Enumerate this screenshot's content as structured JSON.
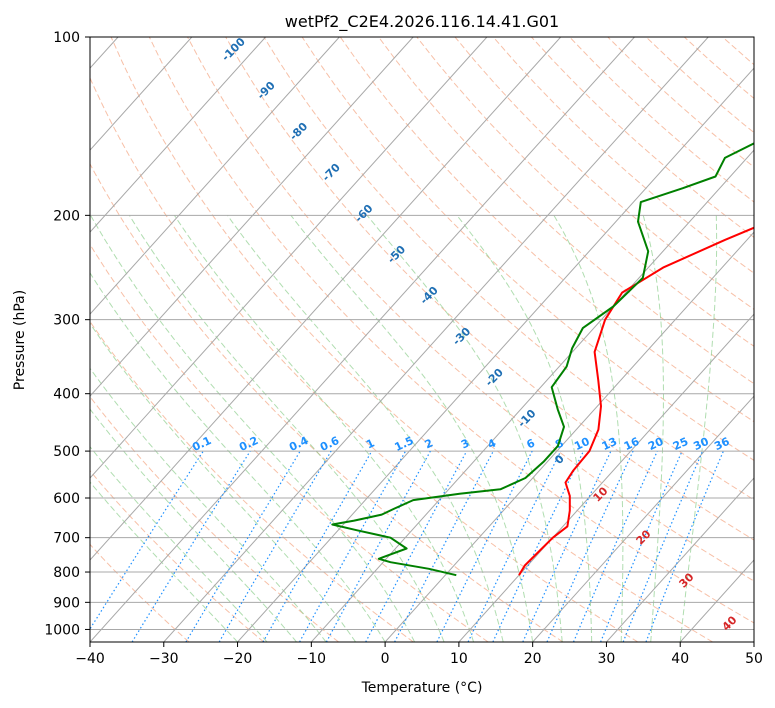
{
  "chart_data": {
    "type": "line",
    "title": "wetPf2_C2E4.2026.116.14.41.G01",
    "xlabel": "Temperature (°C)",
    "ylabel": "Pressure (hPa)",
    "xlim": [
      -40,
      50
    ],
    "ylim": [
      1050,
      100
    ],
    "y_scale": "log",
    "grid": true,
    "x_ticks": [
      -40,
      -30,
      -20,
      -10,
      0,
      10,
      20,
      30,
      40,
      50
    ],
    "y_ticks": [
      100,
      200,
      300,
      400,
      500,
      600,
      700,
      800,
      900,
      1000
    ],
    "series": [
      {
        "color": "#ff0000",
        "points": [
          [
            10,
            810
          ],
          [
            9.6,
            780
          ],
          [
            9.8,
            740
          ],
          [
            10.0,
            700
          ],
          [
            10.6,
            670
          ],
          [
            9.0,
            630
          ],
          [
            7.2,
            595
          ],
          [
            5.0,
            565
          ],
          [
            4.6,
            540
          ],
          [
            4.4,
            500
          ],
          [
            3.0,
            460
          ],
          [
            0.5,
            420
          ],
          [
            -3.0,
            380
          ],
          [
            -7.0,
            340
          ],
          [
            -9.5,
            300
          ],
          [
            -10.5,
            270
          ],
          [
            -8.0,
            245
          ],
          [
            -3.0,
            220
          ],
          [
            2.0,
            200
          ],
          [
            6.0,
            185
          ],
          [
            9.0,
            170
          ],
          [
            13.0,
            155
          ],
          [
            17.0,
            140
          ],
          [
            21.0,
            128
          ],
          [
            24.0,
            118
          ],
          [
            25.5,
            112
          ],
          [
            27.0,
            105
          ],
          [
            28.0,
            100
          ]
        ]
      },
      {
        "color": "#008000",
        "points": [
          [
            1.5,
            810
          ],
          [
            -3.0,
            790
          ],
          [
            -9.0,
            770
          ],
          [
            -11.0,
            760
          ],
          [
            -8.5,
            730
          ],
          [
            -12.0,
            700
          ],
          [
            -17.5,
            680
          ],
          [
            -21.5,
            665
          ],
          [
            -19.0,
            655
          ],
          [
            -16.0,
            640
          ],
          [
            -15.0,
            625
          ],
          [
            -13.5,
            605
          ],
          [
            -8.0,
            590
          ],
          [
            -3.0,
            580
          ],
          [
            -1.0,
            555
          ],
          [
            -0.5,
            520
          ],
          [
            -0.5,
            490
          ],
          [
            -2.0,
            455
          ],
          [
            -5.0,
            425
          ],
          [
            -8.5,
            390
          ],
          [
            -9.0,
            360
          ],
          [
            -10.5,
            335
          ],
          [
            -11.5,
            310
          ],
          [
            -10.0,
            285
          ],
          [
            -9.5,
            255
          ],
          [
            -12.0,
            230
          ],
          [
            -17.0,
            205
          ],
          [
            -19.0,
            190
          ],
          [
            -15.0,
            180
          ],
          [
            -12.0,
            172
          ],
          [
            -13.0,
            160
          ],
          [
            -10.0,
            148
          ],
          [
            -7.0,
            132
          ],
          [
            -3.5,
            118
          ],
          [
            -0.5,
            106
          ],
          [
            1.0,
            100
          ]
        ]
      }
    ],
    "mixing_ratio_labels": [
      "0.1",
      "0.2",
      "0.4",
      "0.6",
      "1",
      "1.5",
      "2",
      "3",
      "4",
      "6",
      "8",
      "10",
      "13",
      "16",
      "20",
      "25",
      "30",
      "36"
    ],
    "dry_adiabat_labels": [
      "-100",
      "-90",
      "-80",
      "-70",
      "-60",
      "-50",
      "-40",
      "-30",
      "-20",
      "-10",
      "0"
    ],
    "moist_adiabat_labels": [
      "10",
      "20",
      "30",
      "40"
    ],
    "line_colors": {
      "isotherm": "#a8a8a8",
      "isobar": "#a8a8a8",
      "dry_adiabat": "#f4a582",
      "moist_adiabat": "#8fcf8f",
      "mixing_ratio": "#1e90ff",
      "special": "#c9b48a"
    }
  }
}
